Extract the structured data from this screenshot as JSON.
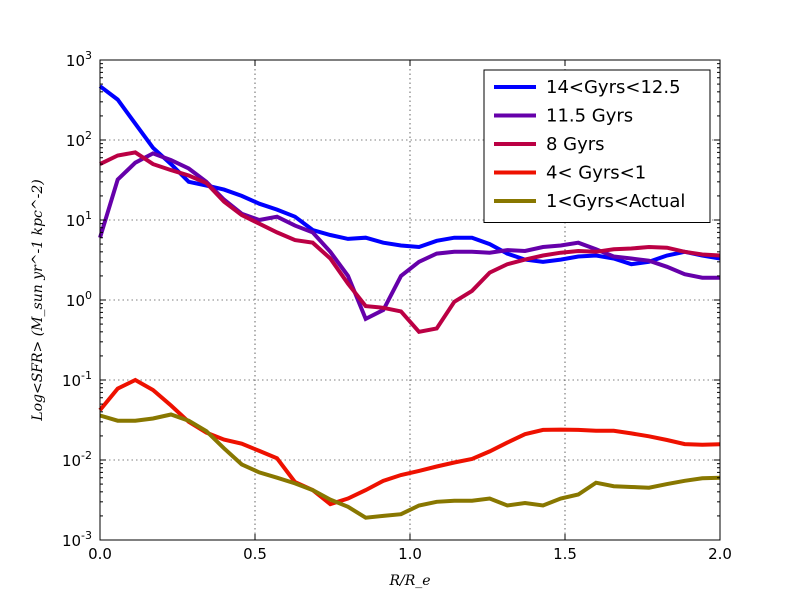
{
  "chart_data": {
    "type": "line",
    "xlabel": "R/R_e",
    "ylabel": "Log<SFR> (M_sun yr^-1 kpc^-2)",
    "xlim": [
      0.0,
      2.0
    ],
    "ylim": [
      0.001,
      1000
    ],
    "yscale": "log",
    "grid": true,
    "legend_position": "top-right",
    "x_ticks": [
      "0.0",
      "0.5",
      "1.0",
      "1.5",
      "2.0"
    ],
    "x_tick_values": [
      0.0,
      0.5,
      1.0,
      1.5,
      2.0
    ],
    "y_ticks": [
      {
        "value": 0.001,
        "base": "10",
        "exp": "-3"
      },
      {
        "value": 0.01,
        "base": "10",
        "exp": "-2"
      },
      {
        "value": 0.1,
        "base": "10",
        "exp": "-1"
      },
      {
        "value": 1,
        "base": "10",
        "exp": "0"
      },
      {
        "value": 10,
        "base": "10",
        "exp": "1"
      },
      {
        "value": 100,
        "base": "10",
        "exp": "2"
      },
      {
        "value": 1000,
        "base": "10",
        "exp": "3"
      }
    ],
    "x": [
      0.0,
      0.057,
      0.114,
      0.171,
      0.229,
      0.286,
      0.343,
      0.4,
      0.457,
      0.514,
      0.571,
      0.629,
      0.686,
      0.743,
      0.8,
      0.857,
      0.914,
      0.971,
      1.029,
      1.086,
      1.143,
      1.2,
      1.257,
      1.314,
      1.371,
      1.429,
      1.486,
      1.543,
      1.6,
      1.657,
      1.714,
      1.771,
      1.829,
      1.886,
      1.943,
      2.0
    ],
    "series": [
      {
        "name": "14<Gyrs<12.5",
        "color": "#0000ff",
        "values": [
          470,
          320,
          160,
          80,
          50,
          30,
          27,
          24,
          20,
          16,
          13.5,
          11,
          7.5,
          6.5,
          5.8,
          6.0,
          5.2,
          4.8,
          4.6,
          5.5,
          6.0,
          6.0,
          5.0,
          3.8,
          3.2,
          3.0,
          3.2,
          3.5,
          3.6,
          3.3,
          2.8,
          3.0,
          3.6,
          4.0,
          3.6,
          3.3
        ]
      },
      {
        "name": "11.5 Gyrs",
        "color": "#6600aa",
        "values": [
          6,
          32,
          52,
          68,
          56,
          44,
          30,
          18,
          12,
          10,
          11,
          8.5,
          7.0,
          4.0,
          2.0,
          0.58,
          0.75,
          2.0,
          3.0,
          3.8,
          4.0,
          4.0,
          3.9,
          4.2,
          4.1,
          4.6,
          4.8,
          5.2,
          4.3,
          3.5,
          3.3,
          3.1,
          2.6,
          2.1,
          1.9,
          1.9
        ]
      },
      {
        "name": "8 Gyrs",
        "color": "#bb0044",
        "values": [
          50,
          64,
          70,
          50,
          42,
          36,
          29,
          17,
          11.5,
          9.0,
          7.0,
          5.6,
          5.2,
          3.3,
          1.6,
          0.84,
          0.8,
          0.72,
          0.4,
          0.44,
          0.95,
          1.3,
          2.2,
          2.8,
          3.2,
          3.6,
          3.9,
          4.1,
          4.0,
          4.3,
          4.4,
          4.6,
          4.5,
          4.0,
          3.7,
          3.6
        ]
      },
      {
        "name": "4< Gyrs<1",
        "color": "#ee1100",
        "values": [
          0.042,
          0.078,
          0.1,
          0.075,
          0.048,
          0.03,
          0.022,
          0.018,
          0.016,
          0.013,
          0.0105,
          0.0053,
          0.0042,
          0.0028,
          0.0033,
          0.0042,
          0.0055,
          0.0065,
          0.0073,
          0.0083,
          0.0093,
          0.0103,
          0.0128,
          0.0165,
          0.021,
          0.0238,
          0.024,
          0.0238,
          0.0232,
          0.0232,
          0.0215,
          0.0198,
          0.0178,
          0.0158,
          0.0155,
          0.0157
        ]
      },
      {
        "name": "1<Gyrs<Actual",
        "color": "#887700",
        "values": [
          0.036,
          0.031,
          0.031,
          0.033,
          0.037,
          0.031,
          0.023,
          0.014,
          0.0088,
          0.007,
          0.006,
          0.0051,
          0.0042,
          0.0032,
          0.0026,
          0.0019,
          0.002,
          0.0021,
          0.0027,
          0.003,
          0.0031,
          0.0031,
          0.0033,
          0.0027,
          0.0029,
          0.0027,
          0.0033,
          0.0037,
          0.0052,
          0.0047,
          0.0046,
          0.0045,
          0.005,
          0.0055,
          0.0059,
          0.006
        ]
      }
    ]
  }
}
